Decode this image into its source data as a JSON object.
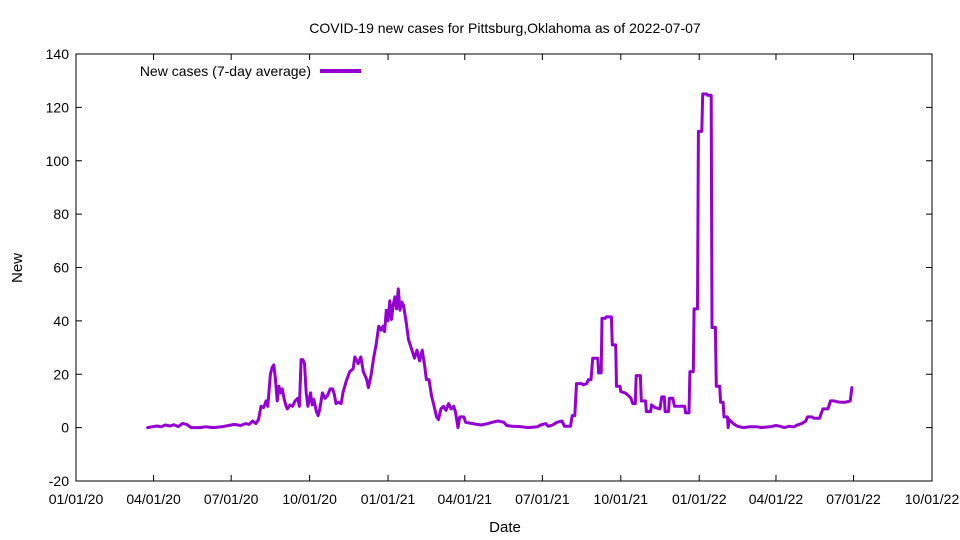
{
  "chart_data": {
    "type": "line",
    "title": "COVID-19 new cases for Pittsburg,Oklahoma as of 2022-07-07",
    "xlabel": "Date",
    "ylabel": "New",
    "x_range": [
      "2020-01-01",
      "2022-10-01"
    ],
    "ylim": [
      -20,
      140
    ],
    "x_ticks": [
      {
        "date": "2020-01-01",
        "label": "01/01/20"
      },
      {
        "date": "2020-04-01",
        "label": "04/01/20"
      },
      {
        "date": "2020-07-01",
        "label": "07/01/20"
      },
      {
        "date": "2020-10-01",
        "label": "10/01/20"
      },
      {
        "date": "2021-01-01",
        "label": "01/01/21"
      },
      {
        "date": "2021-04-01",
        "label": "04/01/21"
      },
      {
        "date": "2021-07-01",
        "label": "07/01/21"
      },
      {
        "date": "2021-10-01",
        "label": "10/01/21"
      },
      {
        "date": "2022-01-01",
        "label": "01/01/22"
      },
      {
        "date": "2022-04-01",
        "label": "04/01/22"
      },
      {
        "date": "2022-07-01",
        "label": "07/01/22"
      },
      {
        "date": "2022-10-01",
        "label": "10/01/22"
      }
    ],
    "y_ticks": [
      -20,
      0,
      20,
      40,
      60,
      80,
      100,
      120,
      140
    ],
    "grid": false,
    "legend_position": "top-left",
    "series": [
      {
        "name": "New cases (7-day average)",
        "color": "#9400d3",
        "points": [
          [
            "2020-03-25",
            0.0
          ],
          [
            "2020-03-30",
            0.3
          ],
          [
            "2020-04-05",
            0.6
          ],
          [
            "2020-04-10",
            0.3
          ],
          [
            "2020-04-15",
            1.0
          ],
          [
            "2020-04-20",
            0.6
          ],
          [
            "2020-04-25",
            1.1
          ],
          [
            "2020-04-30",
            0.4
          ],
          [
            "2020-05-05",
            1.6
          ],
          [
            "2020-05-10",
            1.2
          ],
          [
            "2020-05-15",
            0.0
          ],
          [
            "2020-05-25",
            0.0
          ],
          [
            "2020-06-01",
            0.3
          ],
          [
            "2020-06-10",
            0.0
          ],
          [
            "2020-06-20",
            0.3
          ],
          [
            "2020-06-28",
            0.8
          ],
          [
            "2020-07-05",
            1.2
          ],
          [
            "2020-07-12",
            0.8
          ],
          [
            "2020-07-18",
            1.5
          ],
          [
            "2020-07-22",
            1.2
          ],
          [
            "2020-07-26",
            2.5
          ],
          [
            "2020-07-30",
            1.5
          ],
          [
            "2020-08-02",
            3.0
          ],
          [
            "2020-08-05",
            8.0
          ],
          [
            "2020-08-08",
            7.5
          ],
          [
            "2020-08-11",
            10.0
          ],
          [
            "2020-08-13",
            8.0
          ],
          [
            "2020-08-16",
            20.0
          ],
          [
            "2020-08-18",
            22.5
          ],
          [
            "2020-08-20",
            23.5
          ],
          [
            "2020-08-22",
            18.0
          ],
          [
            "2020-08-24",
            10.0
          ],
          [
            "2020-08-26",
            15.5
          ],
          [
            "2020-08-28",
            13.0
          ],
          [
            "2020-08-30",
            14.5
          ],
          [
            "2020-09-01",
            11.0
          ],
          [
            "2020-09-03",
            8.5
          ],
          [
            "2020-09-05",
            7.0
          ],
          [
            "2020-09-08",
            8.5
          ],
          [
            "2020-09-11",
            8.0
          ],
          [
            "2020-09-14",
            10.0
          ],
          [
            "2020-09-17",
            11.0
          ],
          [
            "2020-09-19",
            8.0
          ],
          [
            "2020-09-21",
            25.5
          ],
          [
            "2020-09-23",
            25.5
          ],
          [
            "2020-09-25",
            24.0
          ],
          [
            "2020-09-27",
            13.0
          ],
          [
            "2020-09-29",
            8.0
          ],
          [
            "2020-10-02",
            13.0
          ],
          [
            "2020-10-04",
            8.5
          ],
          [
            "2020-10-06",
            10.5
          ],
          [
            "2020-10-09",
            6.0
          ],
          [
            "2020-10-11",
            4.5
          ],
          [
            "2020-10-13",
            7.0
          ],
          [
            "2020-10-16",
            13.0
          ],
          [
            "2020-10-19",
            11.0
          ],
          [
            "2020-10-22",
            12.0
          ],
          [
            "2020-10-25",
            14.5
          ],
          [
            "2020-10-28",
            14.5
          ],
          [
            "2020-10-30",
            12.5
          ],
          [
            "2020-11-01",
            9.0
          ],
          [
            "2020-11-04",
            9.5
          ],
          [
            "2020-11-07",
            9.0
          ],
          [
            "2020-11-09",
            13.0
          ],
          [
            "2020-11-13",
            17.5
          ],
          [
            "2020-11-17",
            21.0
          ],
          [
            "2020-11-21",
            22.0
          ],
          [
            "2020-11-23",
            26.5
          ],
          [
            "2020-11-27",
            24.0
          ],
          [
            "2020-11-30",
            26.5
          ],
          [
            "2020-12-03",
            21.0
          ],
          [
            "2020-12-07",
            18.0
          ],
          [
            "2020-12-09",
            15.0
          ],
          [
            "2020-12-12",
            19.5
          ],
          [
            "2020-12-15",
            26.0
          ],
          [
            "2020-12-18",
            31.0
          ],
          [
            "2020-12-21",
            38.0
          ],
          [
            "2020-12-24",
            36.5
          ],
          [
            "2020-12-26",
            38.0
          ],
          [
            "2020-12-28",
            36.0
          ],
          [
            "2020-12-30",
            44.0
          ],
          [
            "2021-01-01",
            40.0
          ],
          [
            "2021-01-03",
            47.5
          ],
          [
            "2021-01-05",
            40.5
          ],
          [
            "2021-01-07",
            46.0
          ],
          [
            "2021-01-09",
            49.0
          ],
          [
            "2021-01-11",
            44.5
          ],
          [
            "2021-01-13",
            52.0
          ],
          [
            "2021-01-15",
            44.0
          ],
          [
            "2021-01-17",
            47.0
          ],
          [
            "2021-01-19",
            46.0
          ],
          [
            "2021-01-22",
            40.0
          ],
          [
            "2021-01-25",
            33.0
          ],
          [
            "2021-01-28",
            30.0
          ],
          [
            "2021-02-01",
            26.0
          ],
          [
            "2021-02-04",
            29.0
          ],
          [
            "2021-02-07",
            25.0
          ],
          [
            "2021-02-10",
            29.0
          ],
          [
            "2021-02-13",
            23.0
          ],
          [
            "2021-02-15",
            18.0
          ],
          [
            "2021-02-18",
            18.0
          ],
          [
            "2021-02-21",
            12.0
          ],
          [
            "2021-02-24",
            8.0
          ],
          [
            "2021-02-27",
            4.0
          ],
          [
            "2021-03-01",
            3.0
          ],
          [
            "2021-03-04",
            7.0
          ],
          [
            "2021-03-07",
            8.0
          ],
          [
            "2021-03-10",
            6.5
          ],
          [
            "2021-03-13",
            9.0
          ],
          [
            "2021-03-16",
            7.0
          ],
          [
            "2021-03-19",
            8.0
          ],
          [
            "2021-03-21",
            6.0
          ],
          [
            "2021-03-24",
            0.0
          ],
          [
            "2021-03-26",
            4.0
          ],
          [
            "2021-03-31",
            4.0
          ],
          [
            "2021-04-02",
            2.0
          ],
          [
            "2021-04-10",
            1.5
          ],
          [
            "2021-04-20",
            1.0
          ],
          [
            "2021-04-28",
            1.5
          ],
          [
            "2021-05-03",
            2.0
          ],
          [
            "2021-05-10",
            2.5
          ],
          [
            "2021-05-17",
            2.0
          ],
          [
            "2021-05-20",
            0.8
          ],
          [
            "2021-05-27",
            0.5
          ],
          [
            "2021-06-05",
            0.4
          ],
          [
            "2021-06-15",
            0.0
          ],
          [
            "2021-06-25",
            0.3
          ],
          [
            "2021-06-29",
            1.0
          ],
          [
            "2021-07-05",
            1.5
          ],
          [
            "2021-07-08",
            0.5
          ],
          [
            "2021-07-13",
            1.0
          ],
          [
            "2021-07-18",
            2.0
          ],
          [
            "2021-07-24",
            2.5
          ],
          [
            "2021-07-27",
            0.5
          ],
          [
            "2021-08-03",
            0.5
          ],
          [
            "2021-08-05",
            4.5
          ],
          [
            "2021-08-08",
            4.5
          ],
          [
            "2021-08-10",
            16.5
          ],
          [
            "2021-08-16",
            16.5
          ],
          [
            "2021-08-18",
            16.0
          ],
          [
            "2021-08-22",
            16.5
          ],
          [
            "2021-08-24",
            18.0
          ],
          [
            "2021-08-27",
            18.0
          ],
          [
            "2021-08-29",
            26.0
          ],
          [
            "2021-09-04",
            26.0
          ],
          [
            "2021-09-05",
            20.5
          ],
          [
            "2021-09-08",
            20.5
          ],
          [
            "2021-09-09",
            41.0
          ],
          [
            "2021-09-13",
            41.0
          ],
          [
            "2021-09-14",
            41.5
          ],
          [
            "2021-09-20",
            41.5
          ],
          [
            "2021-09-21",
            31.0
          ],
          [
            "2021-09-25",
            31.0
          ],
          [
            "2021-09-26",
            15.5
          ],
          [
            "2021-09-30",
            15.5
          ],
          [
            "2021-10-01",
            13.5
          ],
          [
            "2021-10-06",
            13.0
          ],
          [
            "2021-10-10",
            12.0
          ],
          [
            "2021-10-13",
            11.0
          ],
          [
            "2021-10-15",
            9.0
          ],
          [
            "2021-10-18",
            9.0
          ],
          [
            "2021-10-19",
            19.5
          ],
          [
            "2021-10-24",
            19.5
          ],
          [
            "2021-10-25",
            10.0
          ],
          [
            "2021-10-30",
            10.0
          ],
          [
            "2021-10-31",
            6.0
          ],
          [
            "2021-11-05",
            6.0
          ],
          [
            "2021-11-06",
            8.5
          ],
          [
            "2021-11-10",
            7.5
          ],
          [
            "2021-11-16",
            7.0
          ],
          [
            "2021-11-18",
            11.5
          ],
          [
            "2021-11-21",
            11.5
          ],
          [
            "2021-11-22",
            6.0
          ],
          [
            "2021-11-26",
            6.0
          ],
          [
            "2021-11-27",
            11.0
          ],
          [
            "2021-12-01",
            11.0
          ],
          [
            "2021-12-03",
            8.0
          ],
          [
            "2021-12-15",
            8.0
          ],
          [
            "2021-12-16",
            5.5
          ],
          [
            "2021-12-20",
            5.5
          ],
          [
            "2021-12-21",
            21.0
          ],
          [
            "2021-12-25",
            21.0
          ],
          [
            "2021-12-26",
            44.5
          ],
          [
            "2021-12-30",
            44.5
          ],
          [
            "2021-12-31",
            111.0
          ],
          [
            "2022-01-04",
            111.0
          ],
          [
            "2022-01-05",
            125.0
          ],
          [
            "2022-01-10",
            125.0
          ],
          [
            "2022-01-11",
            124.5
          ],
          [
            "2022-01-15",
            124.5
          ],
          [
            "2022-01-16",
            37.5
          ],
          [
            "2022-01-20",
            37.5
          ],
          [
            "2022-01-21",
            15.5
          ],
          [
            "2022-01-25",
            15.5
          ],
          [
            "2022-01-26",
            9.5
          ],
          [
            "2022-01-29",
            9.5
          ],
          [
            "2022-01-30",
            4.0
          ],
          [
            "2022-02-03",
            4.0
          ],
          [
            "2022-02-04",
            0.0
          ],
          [
            "2022-02-05",
            3.0
          ],
          [
            "2022-02-10",
            1.5
          ],
          [
            "2022-02-15",
            0.5
          ],
          [
            "2022-02-22",
            0.0
          ],
          [
            "2022-03-01",
            0.3
          ],
          [
            "2022-03-10",
            0.3
          ],
          [
            "2022-03-15",
            0.0
          ],
          [
            "2022-03-20",
            0.2
          ],
          [
            "2022-03-25",
            0.3
          ],
          [
            "2022-04-01",
            0.8
          ],
          [
            "2022-04-06",
            0.5
          ],
          [
            "2022-04-11",
            0.0
          ],
          [
            "2022-04-16",
            0.5
          ],
          [
            "2022-04-22",
            0.3
          ],
          [
            "2022-04-26",
            1.0
          ],
          [
            "2022-05-01",
            1.5
          ],
          [
            "2022-05-06",
            2.5
          ],
          [
            "2022-05-08",
            4.0
          ],
          [
            "2022-05-13",
            4.0
          ],
          [
            "2022-05-16",
            3.5
          ],
          [
            "2022-05-22",
            3.5
          ],
          [
            "2022-05-26",
            7.0
          ],
          [
            "2022-06-01",
            7.0
          ],
          [
            "2022-06-04",
            10.0
          ],
          [
            "2022-06-08",
            10.0
          ],
          [
            "2022-06-15",
            9.5
          ],
          [
            "2022-06-21",
            9.5
          ],
          [
            "2022-06-27",
            10.0
          ],
          [
            "2022-06-29",
            15.0
          ]
        ]
      }
    ]
  }
}
